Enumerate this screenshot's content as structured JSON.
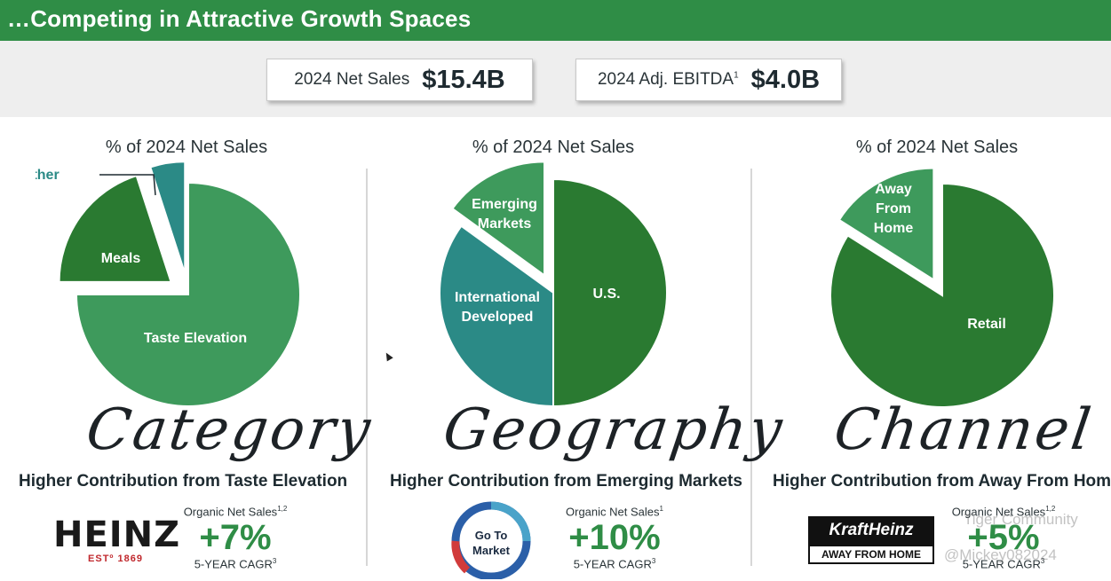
{
  "header": {
    "title": "…Competing in Attractive Growth Spaces"
  },
  "kpis": [
    {
      "label": "2024 Net Sales",
      "sup": "",
      "value": "$15.4B"
    },
    {
      "label": "2024 Adj. EBITDA",
      "sup": "1",
      "value": "$4.0B"
    }
  ],
  "panels": [
    {
      "heading": "% of 2024 Net Sales",
      "script_word": "Category",
      "contribution": "Higher Contribution from Taste Elevation",
      "metric_label": "Organic Net Sales",
      "metric_sup": "1,2",
      "metric_value": "+7%",
      "metric_foot": "5-YEAR CAGR",
      "metric_foot_sup": "3"
    },
    {
      "heading": "% of 2024 Net Sales",
      "script_word": "Geography",
      "contribution": "Higher Contribution from Emerging Markets",
      "metric_label": "Organic Net Sales",
      "metric_sup": "1",
      "metric_value": "+10%",
      "metric_foot": "5-YEAR CAGR",
      "metric_foot_sup": "3"
    },
    {
      "heading": "% of 2024 Net Sales",
      "script_word": "Channel",
      "contribution": "Higher Contribution from Away From Home",
      "metric_label": "Organic Net Sales",
      "metric_sup": "1,2",
      "metric_value": "+5%",
      "metric_foot": "5-YEAR CAGR",
      "metric_foot_sup": "3"
    }
  ],
  "logos": {
    "heinz_word": "HEINZ",
    "heinz_est": "ESTº 1869",
    "gtm_line1": "Go To",
    "gtm_line2": "Market",
    "kh_top": "KraftHeinz",
    "kh_bottom": "AWAY FROM HOME"
  },
  "watermark": {
    "line1": "Tiger Community",
    "line2": "@Mickey082024"
  },
  "colors": {
    "green": "#2f8d46",
    "dark_green": "#2a7a31",
    "light_green": "#3e9a5c",
    "teal": "#2b8a86",
    "teal_dark": "#23717a"
  },
  "chart_data": [
    {
      "type": "pie",
      "title": "% of 2024 Net Sales",
      "caption": "Category",
      "slices": [
        {
          "label": "Taste Elevation",
          "value": 75,
          "color": "#3e9a5c",
          "exploded": false
        },
        {
          "label": "Meals",
          "value": 20,
          "color": "#2a7a31",
          "exploded": true
        },
        {
          "label": "Other",
          "value": 5,
          "color": "#2b8a86",
          "exploded": true
        }
      ]
    },
    {
      "type": "pie",
      "title": "% of 2024 Net Sales",
      "caption": "Geography",
      "slices": [
        {
          "label": "U.S.",
          "value": 50,
          "color": "#2a7a31",
          "exploded": false
        },
        {
          "label": "International Developed",
          "value": 35,
          "color": "#2b8a86",
          "exploded": false
        },
        {
          "label": "Emerging Markets",
          "value": 15,
          "color": "#3e9a5c",
          "exploded": true
        }
      ]
    },
    {
      "type": "pie",
      "title": "% of 2024 Net Sales",
      "caption": "Channel",
      "slices": [
        {
          "label": "Retail",
          "value": 84,
          "color": "#2a7a31",
          "exploded": false
        },
        {
          "label": "Away From Home",
          "value": 16,
          "color": "#3e9a5c",
          "exploded": true
        }
      ]
    }
  ]
}
